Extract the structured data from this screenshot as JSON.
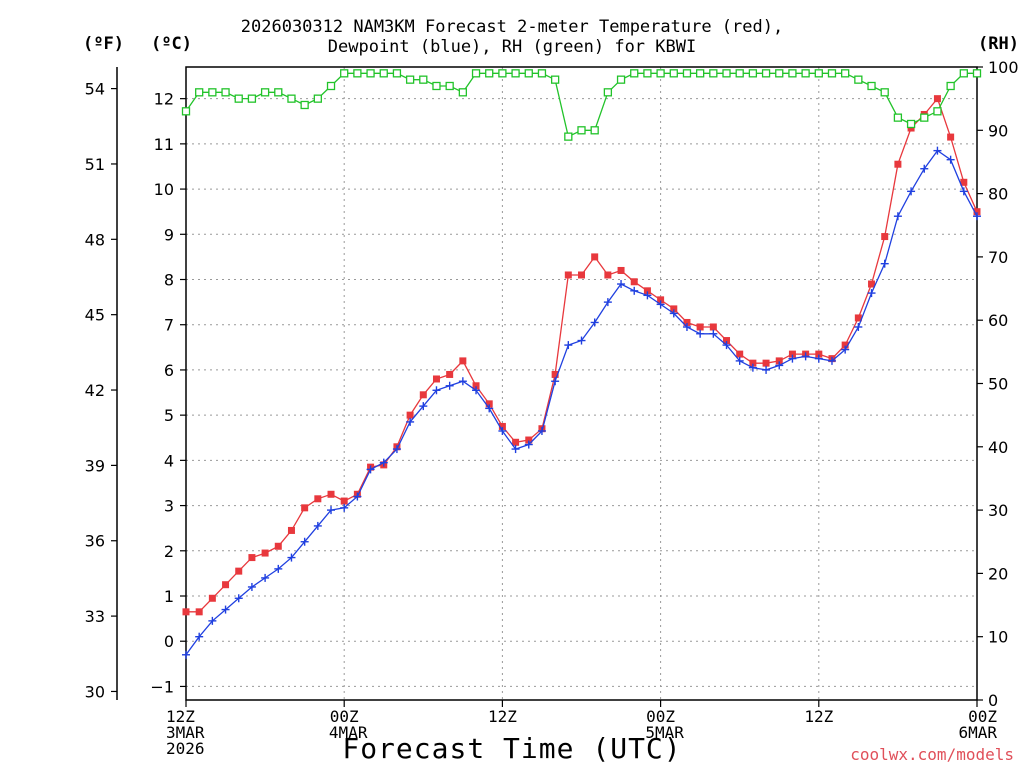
{
  "title": {
    "line1": "2026030312 NAM3KM Forecast 2-meter Temperature (red),",
    "line2": "Dewpoint (blue), RH (green) for KBWI"
  },
  "units": {
    "fahrenheit": "(ºF)",
    "celsius": "(ºC)",
    "rh": "(RH)"
  },
  "xlabel": "Forecast Time (UTC)",
  "credit": "coolwx.com/models",
  "colors": {
    "temperature": "#e8383d",
    "dewpoint": "#2040e0",
    "rh": "#22c32a"
  },
  "chart_data": {
    "type": "line",
    "title": "2026030312 NAM3KM Forecast 2-meter Temperature (red), Dewpoint (blue), RH (green) for KBWI",
    "xlabel": "Forecast Time (UTC)",
    "x_range_hours": [
      0,
      60
    ],
    "x_ticks": [
      {
        "hour": 0,
        "label": [
          "12Z",
          "3MAR",
          "2026"
        ]
      },
      {
        "hour": 12,
        "label": [
          "00Z",
          "4MAR"
        ]
      },
      {
        "hour": 24,
        "label": [
          "12Z"
        ]
      },
      {
        "hour": 36,
        "label": [
          "00Z",
          "5MAR"
        ]
      },
      {
        "hour": 48,
        "label": [
          "12Z"
        ]
      },
      {
        "hour": 60,
        "label": [
          "00Z",
          "6MAR"
        ]
      }
    ],
    "left_axis_c": {
      "label": "(ºC)",
      "range": [
        -1.3,
        12.7
      ],
      "ticks": [
        -1,
        0,
        1,
        2,
        3,
        4,
        5,
        6,
        7,
        8,
        9,
        10,
        11,
        12
      ]
    },
    "left_axis_f": {
      "label": "(ºF)",
      "ticks": [
        30,
        33,
        36,
        39,
        42,
        45,
        48,
        51,
        54
      ]
    },
    "right_axis_rh": {
      "label": "(RH)",
      "range": [
        0,
        100
      ],
      "ticks": [
        0,
        10,
        20,
        30,
        40,
        50,
        60,
        70,
        80,
        90,
        100
      ]
    },
    "series": [
      {
        "name": "2-meter Temperature",
        "unit": "C",
        "color": "red",
        "marker": "square",
        "values": [
          0.65,
          0.65,
          0.95,
          1.25,
          1.55,
          1.85,
          1.95,
          2.1,
          2.45,
          2.95,
          3.15,
          3.25,
          3.1,
          3.25,
          3.85,
          3.9,
          4.3,
          5.0,
          5.45,
          5.8,
          5.9,
          6.2,
          5.65,
          5.25,
          4.75,
          4.4,
          4.45,
          4.7,
          5.9,
          8.1,
          8.1,
          8.5,
          8.1,
          8.2,
          7.95,
          7.75,
          7.55,
          7.35,
          7.05,
          6.95,
          6.95,
          6.65,
          6.35,
          6.15,
          6.15,
          6.2,
          6.35,
          6.35,
          6.35,
          6.25,
          6.55,
          7.15,
          7.9,
          8.95,
          10.55,
          11.35,
          11.65,
          12.0,
          11.15,
          10.15,
          9.5
        ]
      },
      {
        "name": "Dewpoint",
        "unit": "C",
        "color": "blue",
        "marker": "plus",
        "values": [
          -0.3,
          0.1,
          0.45,
          0.7,
          0.95,
          1.2,
          1.4,
          1.6,
          1.85,
          2.2,
          2.55,
          2.9,
          2.95,
          3.2,
          3.8,
          3.95,
          4.25,
          4.85,
          5.2,
          5.55,
          5.65,
          5.75,
          5.55,
          5.15,
          4.65,
          4.25,
          4.35,
          4.65,
          5.75,
          6.55,
          6.65,
          7.05,
          7.5,
          7.9,
          7.75,
          7.65,
          7.45,
          7.25,
          6.95,
          6.8,
          6.8,
          6.55,
          6.2,
          6.05,
          6.0,
          6.1,
          6.25,
          6.3,
          6.25,
          6.2,
          6.45,
          6.95,
          7.7,
          8.35,
          9.4,
          9.95,
          10.45,
          10.85,
          10.65,
          9.95,
          9.4
        ]
      },
      {
        "name": "Relative Humidity",
        "unit": "%",
        "color": "green",
        "marker": "open-square",
        "values": [
          93,
          96,
          96,
          96,
          95,
          95,
          96,
          96,
          95,
          94,
          95,
          97,
          99,
          99,
          99,
          99,
          99,
          98,
          98,
          97,
          97,
          96,
          99,
          99,
          99,
          99,
          99,
          99,
          98,
          89,
          90,
          90,
          96,
          98,
          99,
          99,
          99,
          99,
          99,
          99,
          99,
          99,
          99,
          99,
          99,
          99,
          99,
          99,
          99,
          99,
          99,
          98,
          97,
          96,
          92,
          91,
          92,
          93,
          97,
          99,
          99
        ]
      }
    ]
  }
}
